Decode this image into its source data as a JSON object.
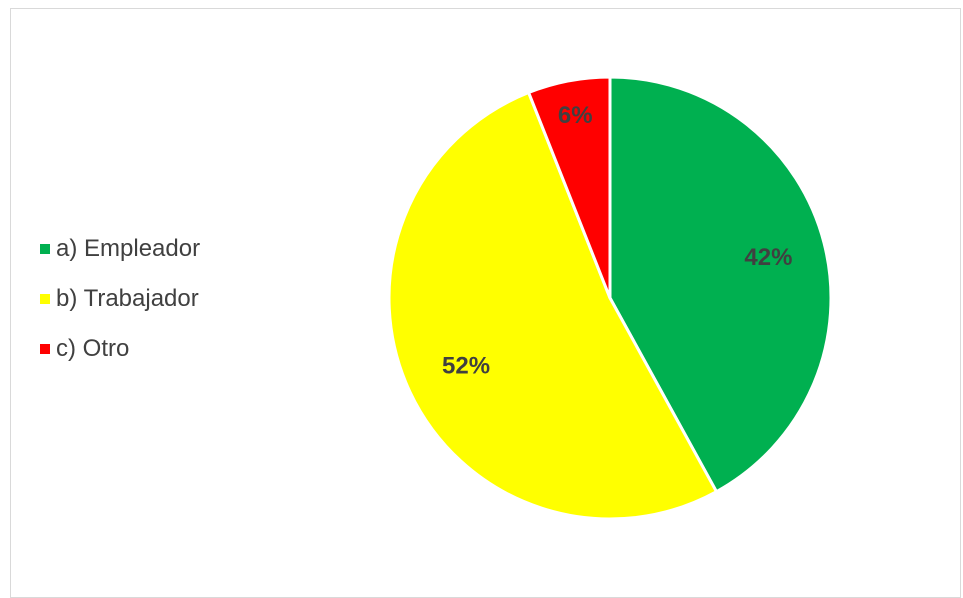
{
  "chart_data": {
    "type": "pie",
    "categories": [
      "a) Empleador",
      "b) Trabajador",
      "c) Otro"
    ],
    "values": [
      42,
      52,
      6
    ],
    "data_labels": [
      "42%",
      "52%",
      "6%"
    ],
    "colors": [
      "#00b050",
      "#ffff00",
      "#ff0000"
    ],
    "legend": {
      "placement": "left",
      "entries": [
        "a) Empleador",
        "b) Trabajador",
        "c) Otro"
      ]
    },
    "start_angle_deg": 0,
    "direction": "clockwise"
  }
}
